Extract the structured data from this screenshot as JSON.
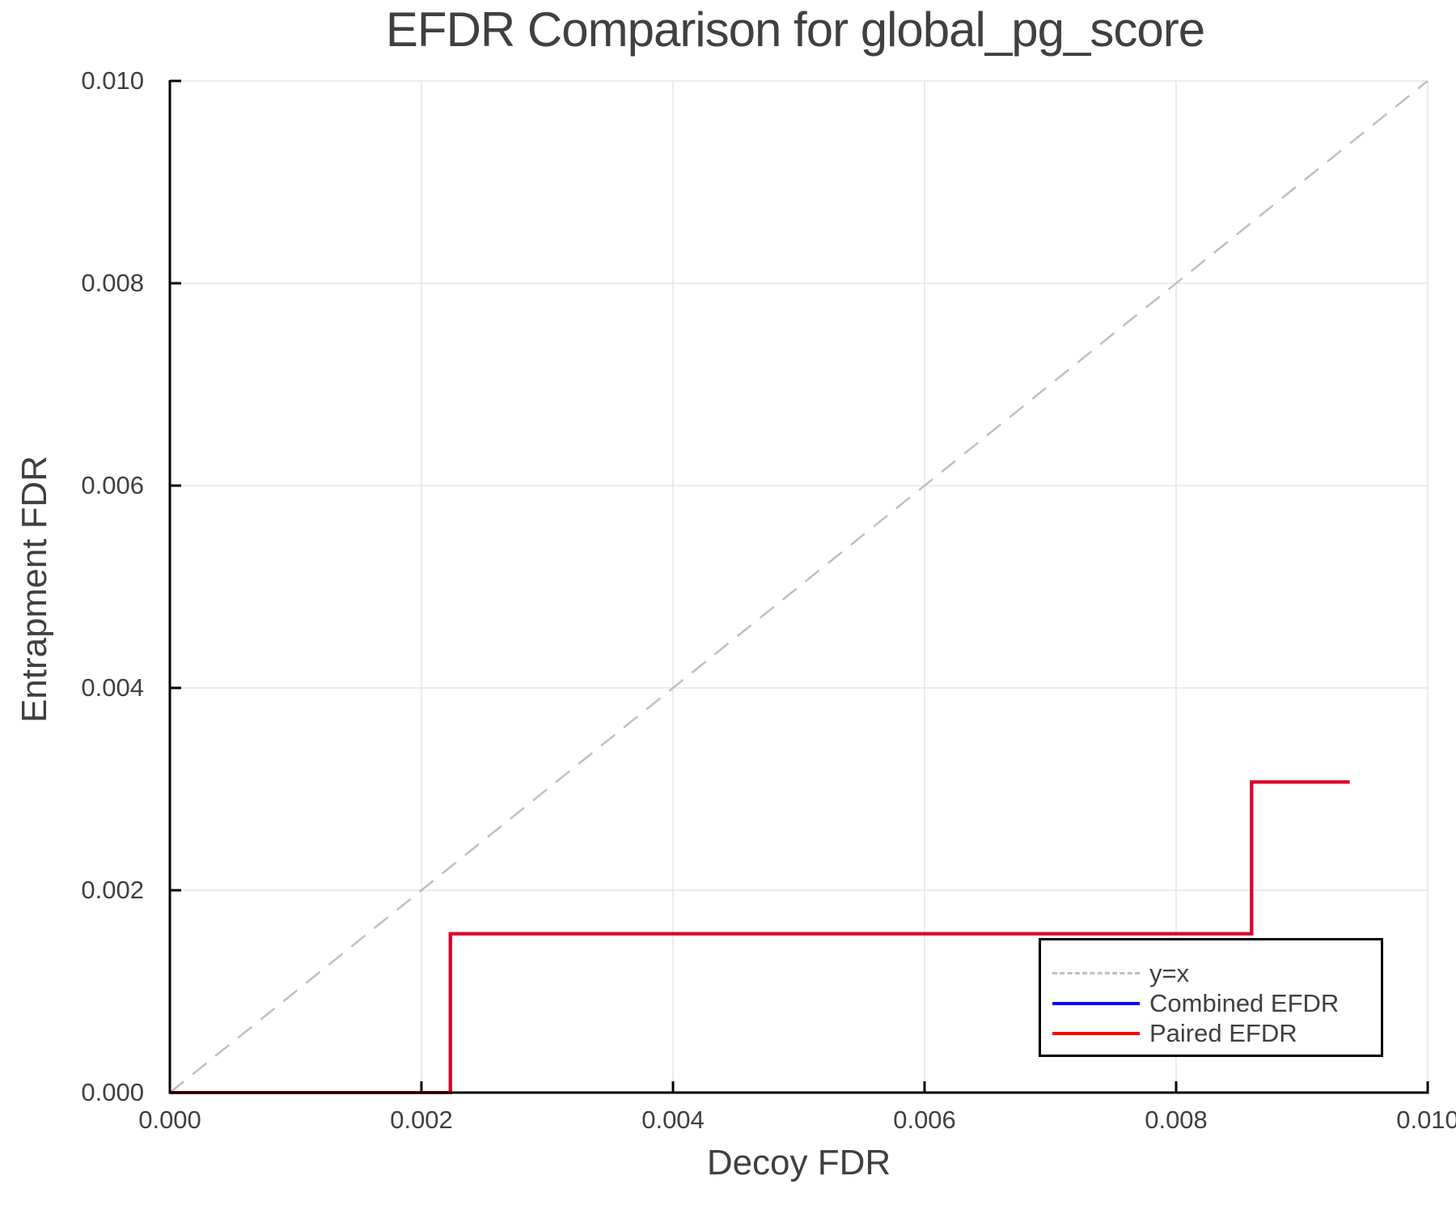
{
  "chart_data": {
    "type": "line",
    "title": "EFDR Comparison for global_pg_score",
    "xlabel": "Decoy FDR",
    "ylabel": "Entrapment FDR",
    "xlim": [
      0.0,
      0.01
    ],
    "ylim": [
      0.0,
      0.01
    ],
    "xticks": [
      "0.000",
      "0.002",
      "0.004",
      "0.006",
      "0.008",
      "0.010"
    ],
    "yticks": [
      "0.000",
      "0.002",
      "0.004",
      "0.006",
      "0.008",
      "0.010"
    ],
    "grid": true,
    "legend_position": "bottom-right",
    "series": [
      {
        "name": "y=x",
        "style": "dashed",
        "color": "#BFBFBF",
        "x": [
          0.0,
          0.01
        ],
        "y": [
          0.0,
          0.01
        ]
      },
      {
        "name": "Combined EFDR",
        "style": "step",
        "color": "#0000FF",
        "x": [
          0.0,
          0.00223,
          0.00223,
          0.0086,
          0.0086,
          0.00938
        ],
        "y": [
          0.0,
          0.0,
          0.00157,
          0.00157,
          0.00307,
          0.00307
        ]
      },
      {
        "name": "Paired EFDR",
        "style": "step",
        "color": "#FF0000",
        "x": [
          0.0,
          0.00223,
          0.00223,
          0.0086,
          0.0086,
          0.00938
        ],
        "y": [
          0.0,
          0.0,
          0.00157,
          0.00157,
          0.00307,
          0.00307
        ]
      }
    ]
  },
  "legend": {
    "items": [
      {
        "label": "y=x",
        "color": "#BFBFBF",
        "style": "dashed"
      },
      {
        "label": "Combined EFDR",
        "color": "#0000FF",
        "style": "solid"
      },
      {
        "label": "Paired EFDR",
        "color": "#FF0000",
        "style": "solid"
      }
    ]
  },
  "colors": {
    "axis": "#000000",
    "grid": "#E6E6E6",
    "text": "#404040",
    "overlap_line": "#E8001E"
  }
}
